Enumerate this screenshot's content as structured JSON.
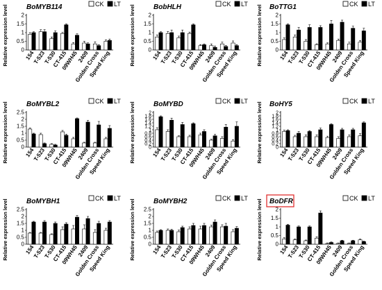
{
  "figure": {
    "legend_ck": "CK",
    "legend_lt": "LT",
    "colors": {
      "ck": "#ffffff",
      "lt": "#000000",
      "axis": "#000000",
      "highlight_box": "#e03030"
    }
  },
  "chart_data": [
    {
      "type": "bar",
      "title": "BoMYB114",
      "ylabel": "Relative expression level",
      "categories": [
        "154",
        "T-523",
        "T-530",
        "CT-415",
        "09WH45",
        "2409",
        "Golden Cross",
        "Speed King"
      ],
      "ylim": [
        0,
        2
      ],
      "yticks": [
        "0",
        "0.5",
        "1",
        "1.5",
        "2"
      ],
      "series": [
        {
          "name": "CK",
          "values": [
            0.9,
            1.05,
            0.65,
            0.95,
            0.35,
            0.4,
            0.35,
            0.5
          ],
          "errors": [
            0.1,
            0.12,
            0.1,
            0.06,
            0.08,
            0.1,
            0.12,
            0.08
          ]
        },
        {
          "name": "LT",
          "values": [
            1.0,
            1.05,
            1.0,
            1.45,
            0.85,
            0.35,
            0.25,
            0.55
          ],
          "errors": [
            0.05,
            0.12,
            0.1,
            0.05,
            0.08,
            0.06,
            0.06,
            0.08
          ]
        }
      ],
      "legend": "top-right",
      "highlight": false
    },
    {
      "type": "bar",
      "title": "BobHLH",
      "ylabel": "Relative expression level",
      "categories": [
        "154",
        "T-523",
        "T-530",
        "CT-415",
        "09WH45",
        "2409",
        "Golden Cross",
        "Speed King"
      ],
      "ylim": [
        0,
        2
      ],
      "yticks": [
        "0",
        "0.5",
        "1",
        "1.5",
        "2"
      ],
      "series": [
        {
          "name": "CK",
          "values": [
            0.75,
            0.95,
            0.7,
            0.95,
            0.25,
            0.25,
            0.35,
            0.4
          ],
          "errors": [
            0.12,
            0.12,
            0.1,
            0.08,
            0.06,
            0.1,
            0.1,
            0.12
          ]
        },
        {
          "name": "LT",
          "values": [
            1.0,
            1.0,
            1.0,
            1.45,
            0.3,
            0.15,
            0.2,
            0.25
          ],
          "errors": [
            0.05,
            0.15,
            0.15,
            0.05,
            0.05,
            0.08,
            0.06,
            0.06
          ]
        }
      ],
      "legend": "top-right",
      "highlight": false
    },
    {
      "type": "bar",
      "title": "BoTTG1",
      "ylabel": "Relative expression level",
      "categories": [
        "154",
        "T-523",
        "T-530",
        "CT-415",
        "09WH45",
        "2409",
        "Golden Cross",
        "Speed King"
      ],
      "ylim": [
        0,
        2
      ],
      "yticks": [
        "0",
        "0.5",
        "1",
        "1.5",
        "2"
      ],
      "series": [
        {
          "name": "CK",
          "values": [
            0.6,
            0.75,
            0.5,
            0.3,
            0.35,
            0.55,
            0.35,
            0.45
          ],
          "errors": [
            0.1,
            0.12,
            0.1,
            0.06,
            0.06,
            0.08,
            0.1,
            0.1
          ]
        },
        {
          "name": "LT",
          "values": [
            1.45,
            1.15,
            1.3,
            1.3,
            1.5,
            1.6,
            1.25,
            1.1
          ],
          "errors": [
            0.05,
            0.15,
            0.15,
            0.1,
            0.2,
            0.12,
            0.12,
            0.15
          ]
        }
      ],
      "legend": "top-right",
      "highlight": false
    },
    {
      "type": "bar",
      "title": "BoMYBL2",
      "ylabel": "Relative expression level",
      "categories": [
        "154",
        "T-523",
        "T-530",
        "CT-415",
        "09WH45",
        "2409",
        "Golden Cross",
        "Speed King"
      ],
      "ylim": [
        0,
        2.5
      ],
      "yticks": [
        "0",
        "0.5",
        "1",
        "1.5",
        "2",
        "2.5"
      ],
      "series": [
        {
          "name": "CK",
          "values": [
            1.3,
            0.9,
            0.2,
            1.1,
            0.6,
            0.3,
            0.3,
            0.6
          ],
          "errors": [
            0.08,
            0.1,
            0.05,
            0.1,
            0.1,
            0.05,
            0.05,
            0.1
          ]
        },
        {
          "name": "LT",
          "values": [
            0.95,
            0.25,
            0.15,
            0.85,
            2.05,
            1.8,
            1.6,
            1.35
          ],
          "errors": [
            0.05,
            0.05,
            0.05,
            0.08,
            0.05,
            0.12,
            0.25,
            0.2
          ]
        }
      ],
      "legend": "top-right",
      "highlight": false
    },
    {
      "type": "bar",
      "title": "BoMYBD",
      "ylabel": "Relative expression level",
      "categories": [
        "154",
        "T-523",
        "T-530",
        "CT-415",
        "09WH45",
        "2409",
        "Golden Cross",
        "Speed King"
      ],
      "ylim": [
        0,
        2
      ],
      "yticks": [
        "0",
        "0.2",
        "0.4",
        "0.6",
        "0.8",
        "1",
        "1.2",
        "1.4",
        "1.6",
        "1.8",
        "2"
      ],
      "series": [
        {
          "name": "CK",
          "values": [
            1.0,
            0.9,
            0.6,
            0.6,
            0.7,
            0.4,
            0.5,
            0.35
          ],
          "errors": [
            0.12,
            0.1,
            0.05,
            0.08,
            0.1,
            0.05,
            0.1,
            0.08
          ]
        },
        {
          "name": "LT",
          "values": [
            1.75,
            1.55,
            1.3,
            1.35,
            0.9,
            0.65,
            1.15,
            1.2
          ],
          "errors": [
            0.05,
            0.12,
            0.12,
            0.05,
            0.1,
            0.08,
            0.15,
            0.25
          ]
        }
      ],
      "legend": "top-right",
      "highlight": false
    },
    {
      "type": "bar",
      "title": "BoHY5",
      "ylabel": "Relative expression level",
      "categories": [
        "154",
        "T-523",
        "T-530",
        "CT-415",
        "09WH45",
        "2409",
        "Golden Cross",
        "Speed King"
      ],
      "ylim": [
        0,
        2
      ],
      "yticks": [
        "0",
        "0.2",
        "0.4",
        "0.6",
        "0.8",
        "1",
        "1.2",
        "1.4",
        "1.6",
        "1.8",
        "2"
      ],
      "series": [
        {
          "name": "CK",
          "values": [
            0.9,
            0.6,
            0.6,
            0.6,
            0.55,
            0.5,
            0.6,
            0.65
          ],
          "errors": [
            0.08,
            0.08,
            0.1,
            0.1,
            0.08,
            0.1,
            0.1,
            0.12
          ]
        },
        {
          "name": "LT",
          "values": [
            0.95,
            0.8,
            0.9,
            1.0,
            1.3,
            1.0,
            1.0,
            1.4
          ],
          "errors": [
            0.05,
            0.1,
            0.05,
            0.1,
            0.05,
            0.08,
            0.08,
            0.05
          ]
        }
      ],
      "legend": "top-right",
      "highlight": false
    },
    {
      "type": "bar",
      "title": "BoMYBH1",
      "ylabel": "Relative expression level",
      "categories": [
        "154",
        "T-523",
        "T-530",
        "CT-415",
        "09WH45",
        "2409",
        "Golden Cross",
        "Speed King"
      ],
      "ylim": [
        0,
        2.5
      ],
      "yticks": [
        "0",
        "0.5",
        "1",
        "1.5",
        "2",
        "2.5"
      ],
      "series": [
        {
          "name": "CK",
          "values": [
            0.8,
            0.8,
            0.7,
            1.05,
            1.1,
            1.1,
            0.85,
            1.0
          ],
          "errors": [
            0.05,
            0.05,
            0.05,
            0.2,
            0.25,
            0.3,
            0.2,
            0.15
          ]
        },
        {
          "name": "LT",
          "values": [
            1.6,
            1.6,
            1.5,
            1.45,
            1.95,
            1.85,
            1.5,
            1.6
          ],
          "errors": [
            0.05,
            0.1,
            0.1,
            0.1,
            0.12,
            0.15,
            0.15,
            0.1
          ]
        }
      ],
      "legend": "top-right",
      "highlight": false
    },
    {
      "type": "bar",
      "title": "BoMYBH2",
      "ylabel": "Relative expression level",
      "categories": [
        "154",
        "T-523",
        "T-530",
        "CT-415",
        "09WH45",
        "2409",
        "Golden Cross",
        "Speed King"
      ],
      "ylim": [
        0,
        2.5
      ],
      "yticks": [
        "0",
        "0.5",
        "1",
        "1.5",
        "2",
        "2.5"
      ],
      "series": [
        {
          "name": "CK",
          "values": [
            0.85,
            1.0,
            0.9,
            1.1,
            1.1,
            1.25,
            1.25,
            0.9
          ],
          "errors": [
            0.1,
            0.1,
            0.12,
            0.15,
            0.2,
            0.12,
            0.15,
            0.15
          ]
        },
        {
          "name": "LT",
          "values": [
            1.0,
            1.0,
            1.2,
            1.35,
            1.35,
            1.6,
            1.3,
            1.15
          ],
          "errors": [
            0.05,
            0.08,
            0.1,
            0.15,
            0.15,
            0.15,
            0.2,
            0.12
          ]
        }
      ],
      "legend": "top-right",
      "highlight": false
    },
    {
      "type": "bar",
      "title": "BoDFR",
      "ylabel": "Relative expression level",
      "categories": [
        "154",
        "T-523",
        "T-530",
        "CT-415",
        "09WH45",
        "2409",
        "Golden Cross",
        "Speed King"
      ],
      "ylim": [
        0,
        2
      ],
      "yticks": [
        "0",
        "0.5",
        "1",
        "1.5",
        "2"
      ],
      "series": [
        {
          "name": "CK",
          "values": [
            0.3,
            0.25,
            0.2,
            0.35,
            0.05,
            0.05,
            0.05,
            0.25
          ],
          "errors": [
            0.08,
            0.06,
            0.04,
            0.08,
            0.02,
            0.02,
            0.02,
            0.05
          ]
        },
        {
          "name": "LT",
          "values": [
            1.1,
            1.0,
            1.0,
            1.8,
            0.1,
            0.2,
            0.2,
            0.15
          ],
          "errors": [
            0.05,
            0.05,
            0.05,
            0.12,
            0.03,
            0.03,
            0.03,
            0.03
          ]
        }
      ],
      "legend": "top-right",
      "highlight": true
    }
  ]
}
